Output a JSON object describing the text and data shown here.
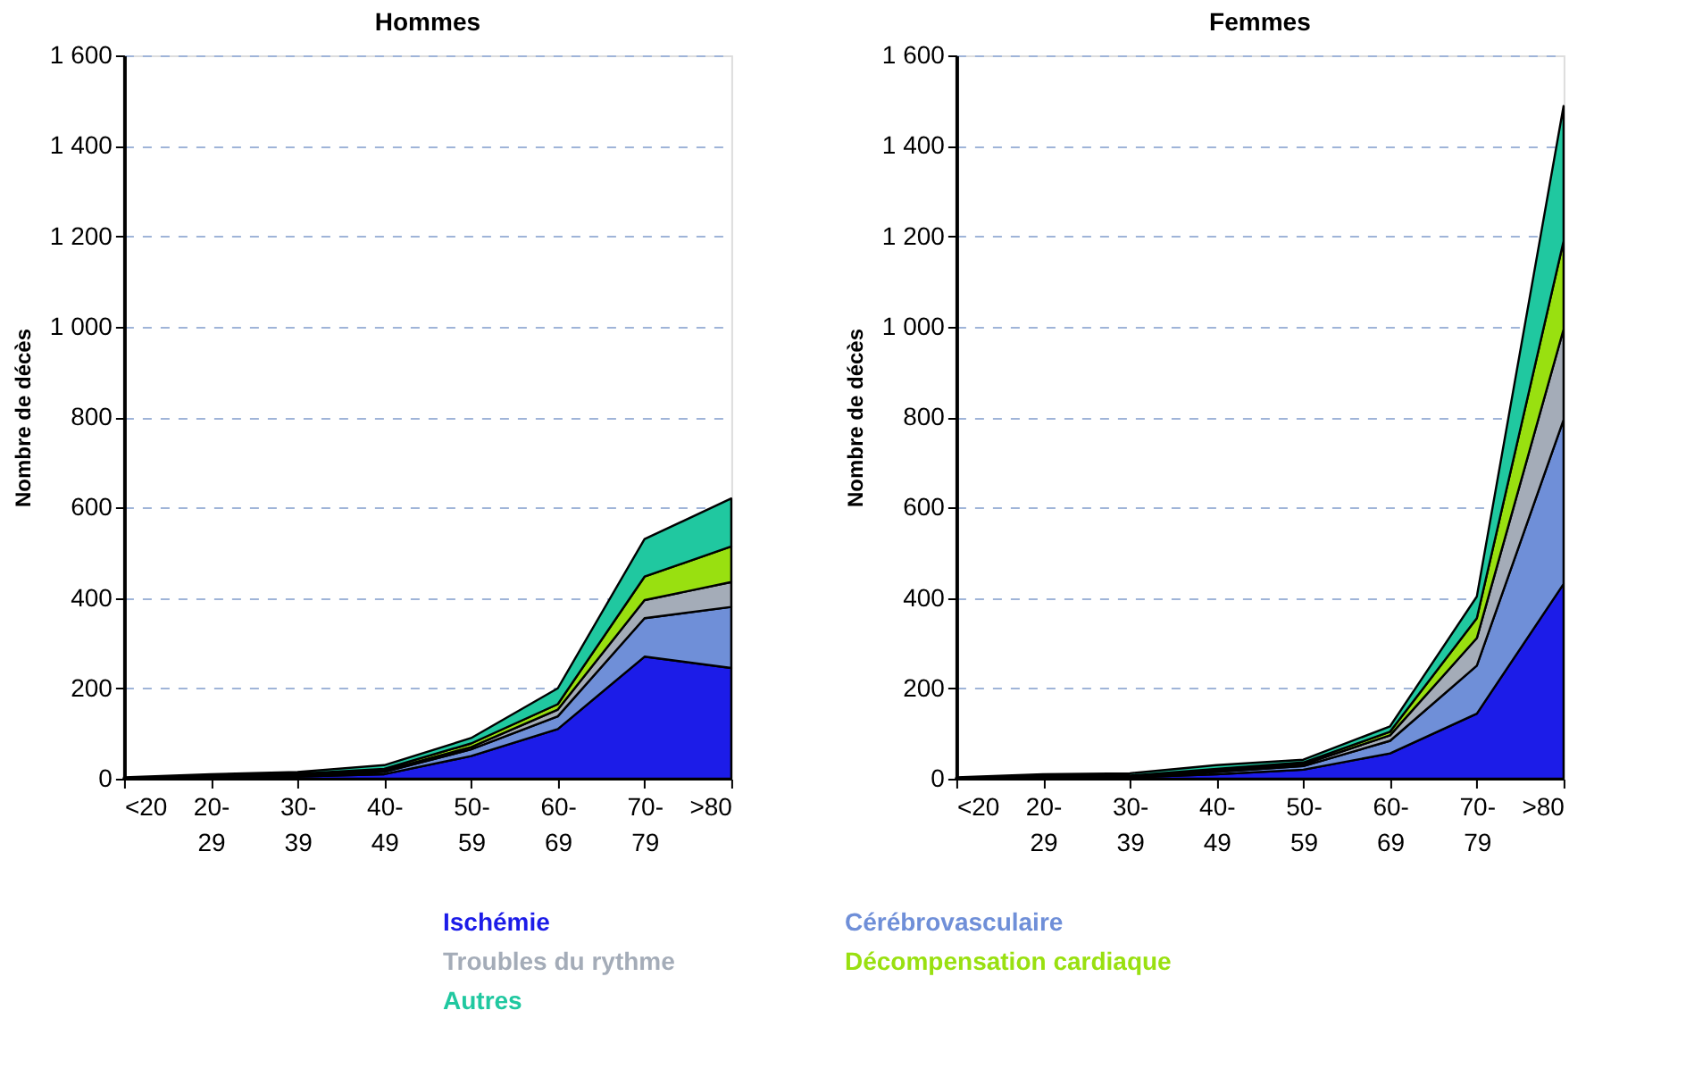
{
  "chart_data": [
    {
      "type": "area",
      "title": "Hommes",
      "ylabel": "Nombre de décès",
      "stacked": true,
      "grid": "y",
      "legend": "bottom",
      "categories": [
        "<20",
        "20-29",
        "30-39",
        "40-49",
        "50-59",
        "60-69",
        "70-79",
        ">80"
      ],
      "ylim": [
        0,
        1600
      ],
      "yticks": [
        0,
        {
          "value": 200,
          "label": "200"
        },
        {
          "value": 400,
          "label": "400"
        },
        {
          "value": 600,
          "label": "600"
        },
        {
          "value": 800,
          "label": "800"
        },
        {
          "value": 1000,
          "label": "1 000"
        },
        {
          "value": 1200,
          "label": "1 200"
        },
        {
          "value": 1400,
          "label": "1 400"
        },
        {
          "value": 1600,
          "label": "1 600"
        }
      ],
      "series": [
        {
          "name": "Ischémie",
          "color": "#1c1ce8",
          "values": [
            1,
            3,
            5,
            10,
            50,
            110,
            270,
            245
          ]
        },
        {
          "name": "Cérébrovasculaire",
          "color": "#6f8fd8",
          "values": [
            0,
            1,
            2,
            5,
            15,
            28,
            85,
            135
          ]
        },
        {
          "name": "Troubles du rythme",
          "color": "#a4acb8",
          "values": [
            0,
            1,
            2,
            3,
            5,
            15,
            40,
            55
          ]
        },
        {
          "name": "Décompensation cardiaque",
          "color": "#99e010",
          "values": [
            0,
            1,
            2,
            4,
            8,
            12,
            52,
            79
          ]
        },
        {
          "name": "Autres",
          "color": "#20c8a0",
          "values": [
            2,
            4,
            4,
            8,
            12,
            35,
            83,
            106
          ]
        }
      ]
    },
    {
      "type": "area",
      "title": "Femmes",
      "ylabel": "Nombre de décès",
      "stacked": true,
      "grid": "y",
      "categories": [
        "<20",
        "20-29",
        "30-39",
        "40-49",
        "50-59",
        "60-69",
        "70-79",
        ">80"
      ],
      "ylim": [
        0,
        1600
      ],
      "yticks": [
        0,
        {
          "value": 200,
          "label": "200"
        },
        {
          "value": 400,
          "label": "400"
        },
        {
          "value": 600,
          "label": "600"
        },
        {
          "value": 800,
          "label": "800"
        },
        {
          "value": 1000,
          "label": "1 000"
        },
        {
          "value": 1200,
          "label": "1 200"
        },
        {
          "value": 1400,
          "label": "1 400"
        },
        {
          "value": 1600,
          "label": "1 600"
        }
      ],
      "series": [
        {
          "color": "#1c1ce8",
          "values": [
            1,
            2,
            3,
            10,
            20,
            56,
            144,
            431
          ]
        },
        {
          "color": "#6f8fd8",
          "values": [
            0,
            1,
            2,
            5,
            8,
            28,
            106,
            363
          ]
        },
        {
          "color": "#a4acb8",
          "values": [
            0,
            1,
            1,
            4,
            4,
            12,
            61,
            200
          ]
        },
        {
          "color": "#99e010",
          "values": [
            0,
            1,
            1,
            3,
            4,
            8,
            44,
            195
          ]
        },
        {
          "color": "#20c8a0",
          "values": [
            2,
            5,
            5,
            8,
            6,
            12,
            48,
            299
          ]
        }
      ]
    }
  ]
}
